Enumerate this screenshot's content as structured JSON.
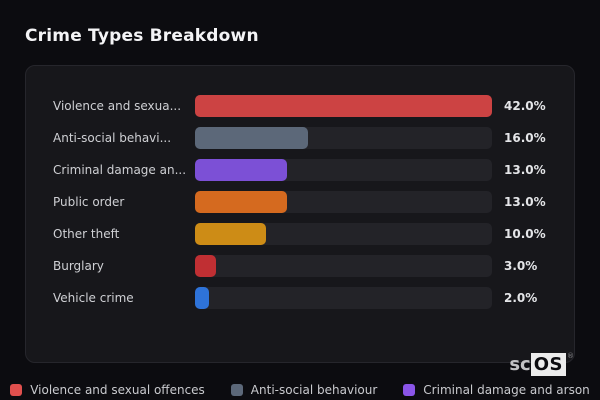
{
  "title": "Crime Types Breakdown",
  "chart_data": {
    "type": "bar",
    "orientation": "horizontal",
    "max_value": 42,
    "value_axis": "percent",
    "grid": false,
    "bars": [
      {
        "label": "Violence and sexua...",
        "value": 42.0,
        "value_label": "42.0%",
        "color": "#cc4343"
      },
      {
        "label": "Anti-social behavi...",
        "value": 16.0,
        "value_label": "16.0%",
        "color": "#5c6879"
      },
      {
        "label": "Criminal damage an...",
        "value": 13.0,
        "value_label": "13.0%",
        "color": "#7c50d6"
      },
      {
        "label": "Public order",
        "value": 13.0,
        "value_label": "13.0%",
        "color": "#d56a1f"
      },
      {
        "label": "Other theft",
        "value": 10.0,
        "value_label": "10.0%",
        "color": "#cd8c16"
      },
      {
        "label": "Burglary",
        "value": 3.0,
        "value_label": "3.0%",
        "color": "#c02f33"
      },
      {
        "label": "Vehicle crime",
        "value": 2.0,
        "value_label": "2.0%",
        "color": "#2e73d9"
      }
    ],
    "legend": [
      {
        "label": "Violence and sexual offences",
        "color": "#e0504e"
      },
      {
        "label": "Anti-social behaviour",
        "color": "#5c6879"
      },
      {
        "label": "Criminal damage and arson",
        "color": "#8a55e8"
      }
    ],
    "legend_position": "bottom-center"
  },
  "branding": {
    "prefix": "sc",
    "box": "OS",
    "registered": "®"
  },
  "colors": {
    "page_bg": "#0c0c10",
    "card_bg": "#17171b",
    "track_bg": "#232328"
  }
}
